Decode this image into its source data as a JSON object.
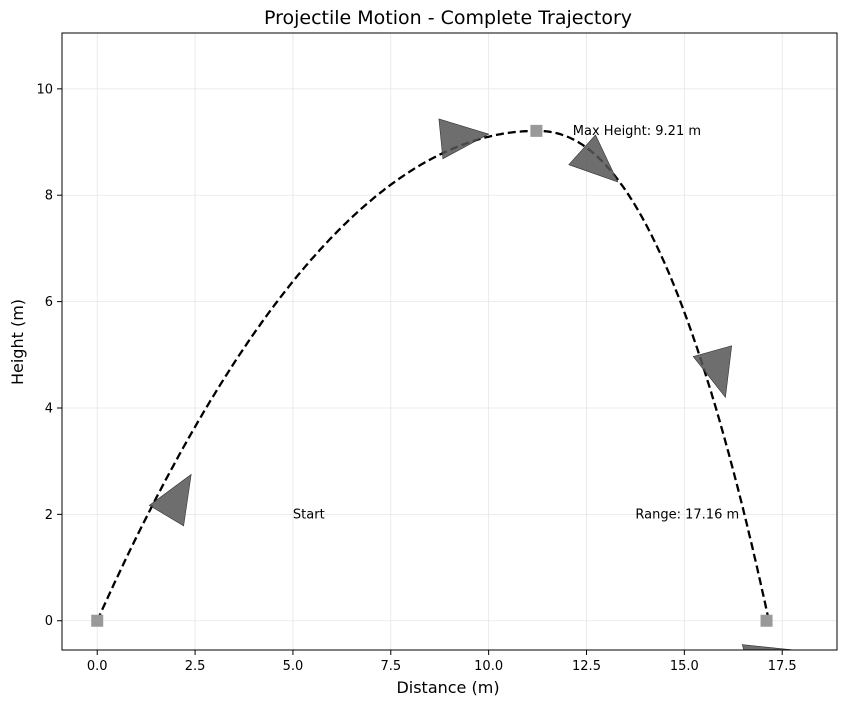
{
  "chart_data": {
    "type": "line",
    "title": "Projectile Motion - Complete Trajectory",
    "xlabel": "Distance (m)",
    "ylabel": "Height (m)",
    "xlim": [
      -0.9,
      18.9
    ],
    "ylim": [
      -0.55,
      11.05
    ],
    "xticks": [
      0.0,
      2.5,
      5.0,
      7.5,
      10.0,
      12.5,
      15.0,
      17.5
    ],
    "xtick_labels": [
      "0.0",
      "2.5",
      "5.0",
      "7.5",
      "10.0",
      "12.5",
      "15.0",
      "17.5"
    ],
    "yticks": [
      0,
      2,
      4,
      6,
      8,
      10
    ],
    "ytick_labels": [
      "0",
      "2",
      "4",
      "6",
      "8",
      "10"
    ],
    "grid": true,
    "trajectory": {
      "style": "dashed",
      "color": "#000000",
      "range": 17.16,
      "max_height": 9.21,
      "apex_x": 11.22
    },
    "markers": [
      {
        "name": "start",
        "x": 0.0,
        "y": 0.0
      },
      {
        "name": "apex",
        "x": 11.22,
        "y": 9.21
      },
      {
        "name": "landing",
        "x": 17.1,
        "y": 0.0
      }
    ],
    "arrows": [
      {
        "x": 2.4,
        "y": 2.75,
        "dx": 0.9,
        "dy": 1.5
      },
      {
        "x": 10.0,
        "y": 9.15,
        "dx": 1.0,
        "dy": 0.1
      },
      {
        "x": 13.3,
        "y": 8.25,
        "dx": 1.0,
        "dy": -0.9
      },
      {
        "x": 16.05,
        "y": 4.2,
        "dx": 0.45,
        "dy": -1.6
      },
      {
        "x": 17.8,
        "y": -0.55,
        "dx": 0.5,
        "dy": 0.15
      }
    ],
    "annotations": [
      {
        "name": "start",
        "text": "Start",
        "x": 5.0,
        "y": 2.0
      },
      {
        "name": "max-height",
        "text": "Max Height: 9.21 m",
        "x": 12.15,
        "y": 9.21
      },
      {
        "name": "range",
        "text": "Range: 17.16 m",
        "x": 13.75,
        "y": 2.0
      }
    ],
    "colors": {
      "line": "#000000",
      "marker": "#999999",
      "arrow": "#555555",
      "grid": "#e6e6e6"
    }
  }
}
